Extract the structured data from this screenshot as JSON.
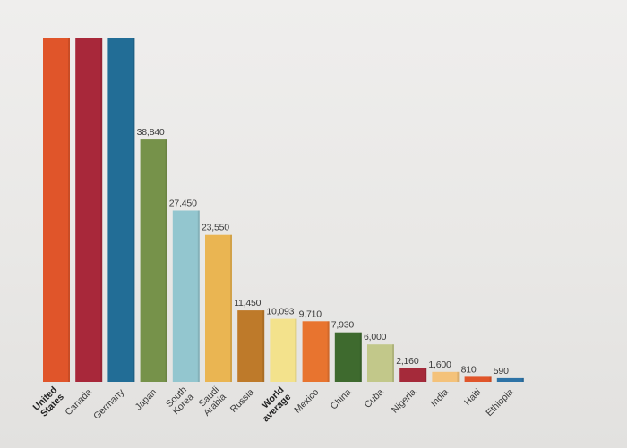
{
  "chart_data": {
    "type": "bar",
    "title": "",
    "xlabel": "",
    "ylabel": "",
    "ylim": [
      0,
      59000
    ],
    "grid": false,
    "legend": "none",
    "categories": [
      "United States",
      "Canada",
      "Germany",
      "Japan",
      "South Korea",
      "Saudi Arabia",
      "Russia",
      "World average",
      "Mexico",
      "China",
      "Cuba",
      "Nigeria",
      "India",
      "Haiti",
      "Ethiopia"
    ],
    "values": [
      55200,
      55200,
      55200,
      38840,
      27450,
      23550,
      11450,
      10093,
      9710,
      7930,
      6000,
      2160,
      1600,
      810,
      590
    ],
    "data_labels": [
      "",
      "",
      "",
      "38,840",
      "27,450",
      "23,550",
      "11,450",
      "10,093",
      "9,710",
      "7,930",
      "6,000",
      "2,160",
      "1,600",
      "810",
      "590"
    ],
    "highlight_categories": [
      "United States",
      "World average"
    ],
    "colors": [
      "#e0552a",
      "#a8283a",
      "#226d96",
      "#76924a",
      "#93c6cf",
      "#eab552",
      "#be7a2a",
      "#f3e28c",
      "#e8742f",
      "#3e6a2e",
      "#c2c88a",
      "#a52a3a",
      "#f4c27a",
      "#e0552a",
      "#2d73a6"
    ]
  }
}
